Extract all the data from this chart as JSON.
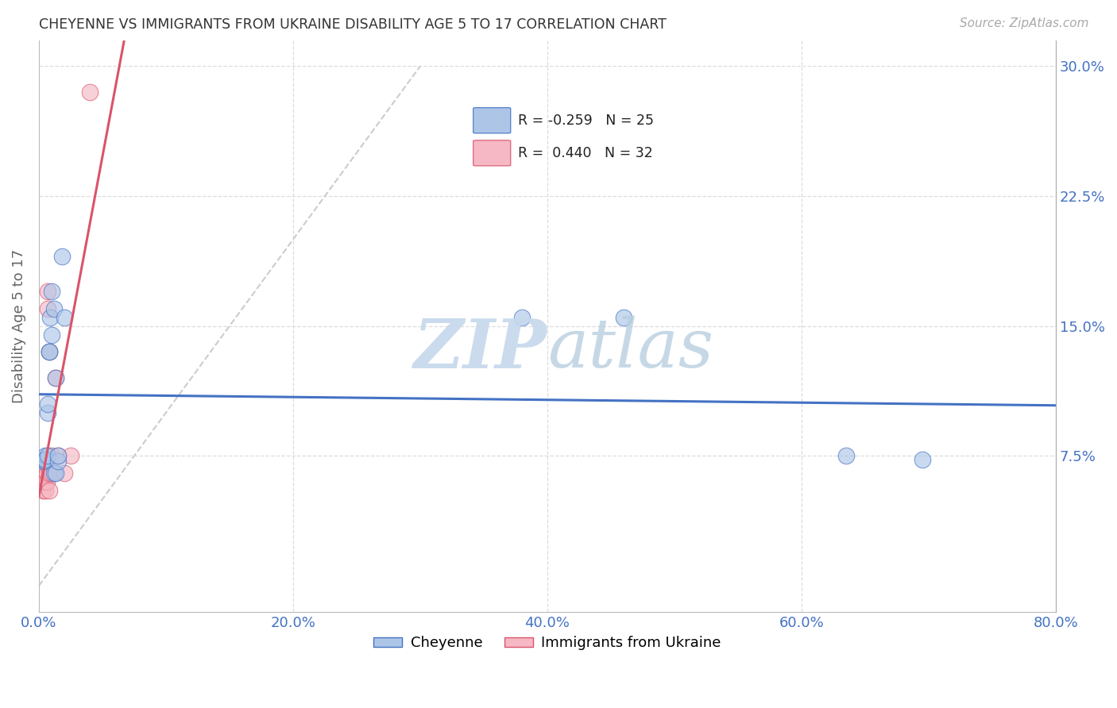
{
  "title": "CHEYENNE VS IMMIGRANTS FROM UKRAINE DISABILITY AGE 5 TO 17 CORRELATION CHART",
  "source": "Source: ZipAtlas.com",
  "ylabel": "Disability Age 5 to 17",
  "xlim": [
    0.0,
    0.8
  ],
  "ylim": [
    -0.015,
    0.315
  ],
  "xticks": [
    0.0,
    0.2,
    0.4,
    0.6,
    0.8
  ],
  "yticks": [
    0.0,
    0.075,
    0.15,
    0.225,
    0.3
  ],
  "ytick_labels": [
    "",
    "7.5%",
    "15.0%",
    "22.5%",
    "30.0%"
  ],
  "xtick_labels": [
    "0.0%",
    "20.0%",
    "40.0%",
    "60.0%",
    "80.0%"
  ],
  "grid_color": "#dddddd",
  "background_color": "#ffffff",
  "cheyenne_color": "#adc6e8",
  "ukraine_color": "#f5b8c4",
  "cheyenne_R": -0.259,
  "cheyenne_N": 25,
  "ukraine_R": 0.44,
  "ukraine_N": 32,
  "cheyenne_points_x": [
    0.003,
    0.003,
    0.005,
    0.005,
    0.005,
    0.007,
    0.007,
    0.007,
    0.008,
    0.008,
    0.009,
    0.01,
    0.01,
    0.012,
    0.012,
    0.013,
    0.013,
    0.015,
    0.015,
    0.018,
    0.02,
    0.38,
    0.46,
    0.635,
    0.695
  ],
  "cheyenne_points_y": [
    0.072,
    0.073,
    0.072,
    0.075,
    0.073,
    0.075,
    0.1,
    0.105,
    0.135,
    0.135,
    0.155,
    0.145,
    0.17,
    0.16,
    0.065,
    0.065,
    0.12,
    0.072,
    0.075,
    0.19,
    0.155,
    0.155,
    0.155,
    0.075,
    0.073
  ],
  "ukraine_points_x": [
    0.001,
    0.001,
    0.002,
    0.002,
    0.002,
    0.002,
    0.003,
    0.003,
    0.003,
    0.003,
    0.004,
    0.004,
    0.004,
    0.005,
    0.005,
    0.005,
    0.005,
    0.005,
    0.006,
    0.006,
    0.007,
    0.007,
    0.008,
    0.008,
    0.008,
    0.01,
    0.01,
    0.013,
    0.015,
    0.02,
    0.025,
    0.04
  ],
  "ukraine_points_y": [
    0.068,
    0.063,
    0.068,
    0.065,
    0.063,
    0.06,
    0.068,
    0.063,
    0.06,
    0.055,
    0.068,
    0.063,
    0.06,
    0.068,
    0.065,
    0.063,
    0.06,
    0.055,
    0.065,
    0.06,
    0.17,
    0.16,
    0.135,
    0.065,
    0.055,
    0.075,
    0.065,
    0.12,
    0.075,
    0.065,
    0.075,
    0.285
  ],
  "cheyenne_line_color": "#4472c4",
  "ukraine_line_color": "#d9546a",
  "identity_line_color": "#cccccc",
  "watermark_zip": "ZIP",
  "watermark_atlas": "atlas",
  "watermark_color_zip": "#c5d8ec",
  "watermark_color_atlas": "#b8cfe0",
  "cheyenne_label": "Cheyenne",
  "ukraine_label": "Immigrants from Ukraine"
}
